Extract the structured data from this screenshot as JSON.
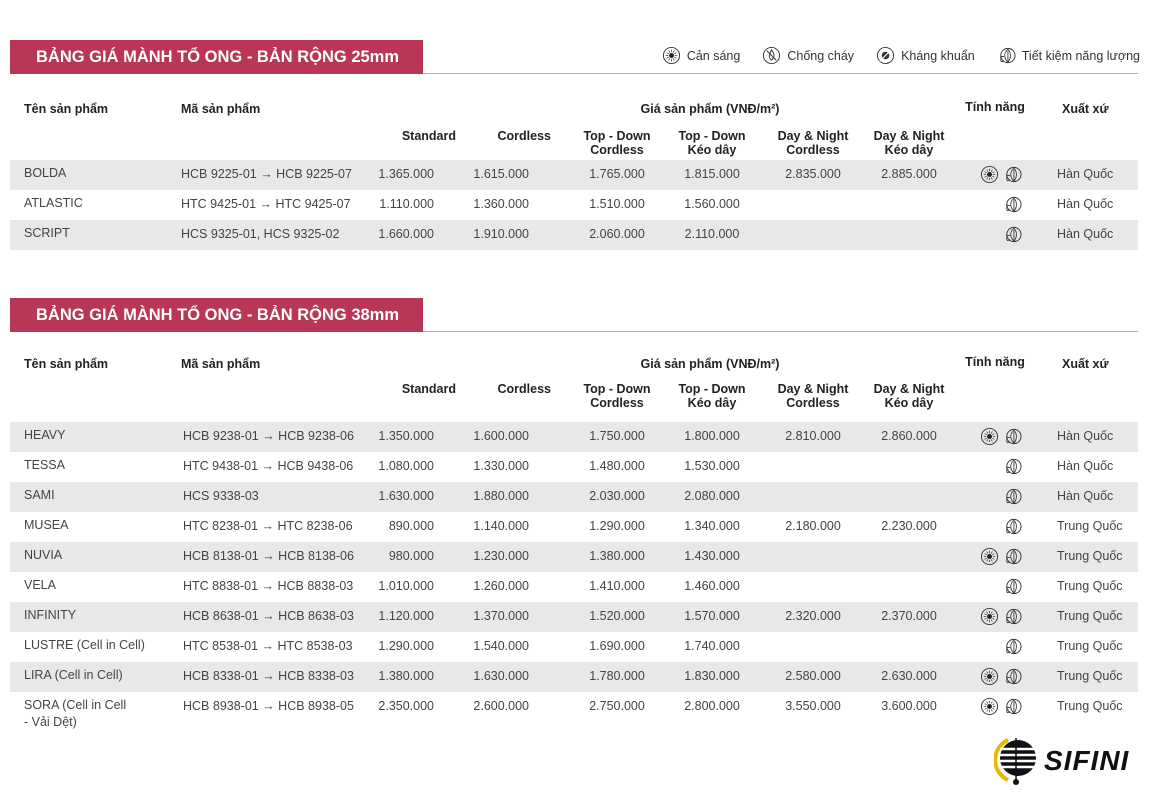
{
  "legend": [
    {
      "icon": "sun-icon",
      "label": "Cản sáng"
    },
    {
      "icon": "fire-off-icon",
      "label": "Chống cháy"
    },
    {
      "icon": "antibacterial-icon",
      "label": "Kháng khuẩn"
    },
    {
      "icon": "leaf-plug-icon",
      "label": "Tiết kiệm năng lượng"
    }
  ],
  "headers": {
    "name": "Tên sản phẩm",
    "code": "Mã sản phẩm",
    "price": "Giá sản phẩm (VNĐ/m²)",
    "features": "Tính năng",
    "origin": "Xuất xứ",
    "cols": [
      "Standard",
      "Cordless",
      "Top - Down\nCordless",
      "Top - Down\nKéo dây",
      "Day & Night\nCordless",
      "Day & Night\nKéo dây"
    ]
  },
  "tables": [
    {
      "title": "BẢNG GIÁ MÀNH TỔ ONG - BẢN RỘNG 25mm",
      "rows": [
        {
          "name": "BOLDA",
          "code": "HCB 9225-01 → HCB 9225-07",
          "prices": [
            "1.365.000",
            "1.615.000",
            "1.765.000",
            "1.815.000",
            "2.835.000",
            "2.885.000"
          ],
          "features": [
            "sun",
            "leaf"
          ],
          "origin": "Hàn Quốc"
        },
        {
          "name": "ATLASTIC",
          "code": "HTC 9425-01 → HTC 9425-07",
          "prices": [
            "1.110.000",
            "1.360.000",
            "1.510.000",
            "1.560.000",
            "",
            ""
          ],
          "features": [
            "leaf"
          ],
          "origin": "Hàn Quốc"
        },
        {
          "name": "SCRIPT",
          "code": "HCS 9325-01, HCS 9325-02",
          "prices": [
            "1.660.000",
            "1.910.000",
            "2.060.000",
            "2.110.000",
            "",
            ""
          ],
          "features": [
            "leaf"
          ],
          "origin": "Hàn Quốc"
        }
      ]
    },
    {
      "title": "BẢNG GIÁ MÀNH TỔ ONG - BẢN RỘNG 38mm",
      "rows": [
        {
          "name": "HEAVY",
          "code": "HCB 9238-01 → HCB 9238-06",
          "prices": [
            "1.350.000",
            "1.600.000",
            "1.750.000",
            "1.800.000",
            "2.810.000",
            "2.860.000"
          ],
          "features": [
            "sun",
            "leaf"
          ],
          "origin": "Hàn Quốc"
        },
        {
          "name": "TESSA",
          "code": "HTC 9438-01 → HCB 9438-06",
          "prices": [
            "1.080.000",
            "1.330.000",
            "1.480.000",
            "1.530.000",
            "",
            ""
          ],
          "features": [
            "leaf"
          ],
          "origin": "Hàn Quốc"
        },
        {
          "name": "SAMI",
          "code": "HCS 9338-03",
          "prices": [
            "1.630.000",
            "1.880.000",
            "2.030.000",
            "2.080.000",
            "",
            ""
          ],
          "features": [
            "leaf"
          ],
          "origin": "Hàn Quốc"
        },
        {
          "name": "MUSEA",
          "code": "HTC 8238-01 → HTC 8238-06",
          "prices": [
            "890.000",
            "1.140.000",
            "1.290.000",
            "1.340.000",
            "2.180.000",
            "2.230.000"
          ],
          "features": [
            "leaf"
          ],
          "origin": "Trung Quốc"
        },
        {
          "name": "NUVIA",
          "code": "HCB 8138-01 → HCB 8138-06",
          "prices": [
            "980.000",
            "1.230.000",
            "1.380.000",
            "1.430.000",
            "",
            ""
          ],
          "features": [
            "sun",
            "leaf"
          ],
          "origin": "Trung Quốc"
        },
        {
          "name": "VELA",
          "code": "HTC 8838-01 → HCB 8838-03",
          "prices": [
            "1.010.000",
            "1.260.000",
            "1.410.000",
            "1.460.000",
            "",
            ""
          ],
          "features": [
            "leaf"
          ],
          "origin": "Trung Quốc"
        },
        {
          "name": "INFINITY",
          "code": "HCB 8638-01 → HCB 8638-03",
          "prices": [
            "1.120.000",
            "1.370.000",
            "1.520.000",
            "1.570.000",
            "2.320.000",
            "2.370.000"
          ],
          "features": [
            "sun",
            "leaf"
          ],
          "origin": "Trung Quốc"
        },
        {
          "name": "LUSTRE (Cell in Cell)",
          "code": "HTC 8538-01 → HTC 8538-03",
          "prices": [
            "1.290.000",
            "1.540.000",
            "1.690.000",
            "1.740.000",
            "",
            ""
          ],
          "features": [
            "leaf"
          ],
          "origin": "Trung Quốc"
        },
        {
          "name": "LIRA (Cell in Cell)",
          "code": "HCB 8338-01 → HCB 8338-03",
          "prices": [
            "1.380.000",
            "1.630.000",
            "1.780.000",
            "1.830.000",
            "2.580.000",
            "2.630.000"
          ],
          "features": [
            "sun",
            "leaf"
          ],
          "origin": "Trung Quốc"
        },
        {
          "name": "SORA (Cell in Cell\n- Vải Dệt)",
          "code": "HCB 8938-01 → HCB 8938-05",
          "prices": [
            "2.350.000",
            "2.600.000",
            "2.750.000",
            "2.800.000",
            "3.550.000",
            "3.600.000"
          ],
          "features": [
            "sun",
            "leaf"
          ],
          "origin": "Trung Quốc"
        }
      ]
    }
  ],
  "logo": {
    "text": "SIFINI",
    "colors": {
      "accent": "#e6b800",
      "dark": "#111111"
    }
  },
  "colors": {
    "banner": "#b83656",
    "row_alt": "#e8e8ea"
  }
}
